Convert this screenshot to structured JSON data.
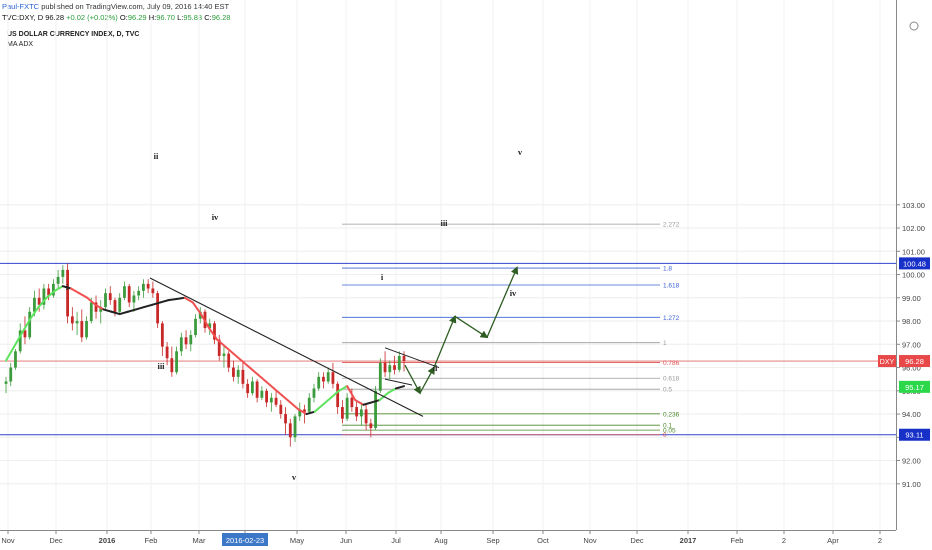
{
  "header": {
    "author": "Paul-FXTC",
    "published": "published on TradingView.com, July 09, 2016 14:40 EST",
    "symbol_line": "TVC:DXY, D",
    "last": "96.28",
    "change": "+0.02 (+0.02%)",
    "ohlc": [
      "O:",
      "96.29",
      "H:",
      "96.70",
      "L:",
      "95.83",
      "C:",
      "96.28"
    ]
  },
  "study": {
    "title": "US DOLLAR CURRENCY INDEX, D, TVC",
    "indicator": "MA ADX"
  },
  "colors": {
    "bull": "#3c9b3c",
    "bear": "#c82828",
    "ma_up": "#5de35d",
    "ma_down": "#f05050",
    "ma_flat": "#222222",
    "fib_blue": "#3b60d8",
    "fib_red": "#e05050",
    "fib_green": "#4a8a2a",
    "fib_gray": "#9a9a9a",
    "arrow": "#2e5d22",
    "hline": "#3344cc"
  },
  "chart_data": {
    "type": "candlestick",
    "title": "US DOLLAR CURRENCY INDEX, D, TVC",
    "ylim": [
      90.5,
      103.5
    ],
    "yticks": [
      "91.00",
      "92.00",
      "93.00",
      "94.00",
      "95.00",
      "96.00",
      "97.00",
      "98.00",
      "99.00",
      "100.00",
      "101.00",
      "102.00",
      "103.00"
    ],
    "xticks": [
      "Nov",
      "Dec",
      "2016",
      "Feb",
      "Mar",
      "2016-02-23",
      "May",
      "Jun",
      "Jul",
      "Aug",
      "Sep",
      "Oct",
      "Nov",
      "Dec",
      "2017",
      "Feb",
      "2",
      "Apr",
      "2"
    ],
    "price_badges": [
      {
        "label": "100.48",
        "value": 100.48,
        "style": "blue"
      },
      {
        "label": "96.28",
        "value": 96.28,
        "style": "red",
        "tag": "DXY"
      },
      {
        "label": "95.17",
        "value": 95.17,
        "style": "green"
      },
      {
        "label": "93.11",
        "value": 93.11,
        "style": "blue"
      }
    ],
    "horizontal_lines": [
      100.48,
      93.11
    ],
    "fib_levels": [
      {
        "label": "2.272",
        "value": 102.17,
        "color": "gray"
      },
      {
        "label": "1.8",
        "value": 100.28,
        "color": "blue"
      },
      {
        "label": "1.618",
        "value": 99.55,
        "color": "blue"
      },
      {
        "label": "1.272",
        "value": 98.16,
        "color": "blue"
      },
      {
        "label": "1",
        "value": 97.07,
        "color": "gray"
      },
      {
        "label": "0.786",
        "value": 96.22,
        "color": "red"
      },
      {
        "label": "0.618",
        "value": 95.54,
        "color": "gray"
      },
      {
        "label": "0.5",
        "value": 95.07,
        "color": "gray"
      },
      {
        "label": "0.236",
        "value": 94.01,
        "color": "green"
      },
      {
        "label": "0.1",
        "value": 93.52,
        "color": "green"
      },
      {
        "label": "0.05",
        "value": 93.31,
        "color": "green"
      },
      {
        "label": "0",
        "value": 93.11,
        "color": "red"
      }
    ],
    "wave_labels": [
      "ii",
      "i",
      "iv",
      "iii",
      "v",
      "i",
      "ii",
      "iii",
      "iv",
      "v"
    ],
    "candles_ohlc": [
      [
        95.3,
        95.6,
        94.9,
        95.4
      ],
      [
        95.4,
        96.2,
        95.2,
        96.0
      ],
      [
        96.0,
        96.8,
        95.9,
        96.7
      ],
      [
        96.7,
        97.9,
        96.6,
        97.6
      ],
      [
        97.6,
        98.2,
        97.0,
        97.3
      ],
      [
        97.3,
        98.6,
        97.2,
        98.4
      ],
      [
        98.4,
        99.3,
        98.2,
        99.0
      ],
      [
        99.0,
        99.4,
        98.4,
        98.7
      ],
      [
        98.7,
        99.6,
        98.5,
        99.4
      ],
      [
        99.4,
        99.6,
        98.9,
        99.1
      ],
      [
        99.1,
        99.8,
        99.0,
        99.6
      ],
      [
        99.6,
        100.2,
        99.4,
        99.9
      ],
      [
        99.9,
        100.4,
        99.6,
        100.2
      ],
      [
        100.2,
        100.48,
        97.9,
        98.2
      ],
      [
        98.2,
        98.6,
        97.6,
        97.9
      ],
      [
        97.9,
        98.4,
        97.4,
        98.0
      ],
      [
        98.0,
        98.5,
        97.1,
        97.3
      ],
      [
        97.3,
        98.2,
        97.2,
        98.0
      ],
      [
        98.0,
        99.0,
        97.9,
        98.8
      ],
      [
        98.8,
        99.1,
        98.1,
        98.4
      ],
      [
        98.4,
        98.9,
        97.9,
        98.6
      ],
      [
        98.6,
        99.4,
        98.5,
        99.2
      ],
      [
        99.2,
        99.5,
        98.7,
        98.9
      ],
      [
        98.9,
        99.0,
        98.2,
        98.4
      ],
      [
        98.4,
        99.2,
        98.3,
        99.0
      ],
      [
        99.0,
        99.7,
        98.9,
        99.5
      ],
      [
        99.5,
        99.6,
        98.6,
        98.8
      ],
      [
        98.8,
        99.3,
        98.4,
        99.1
      ],
      [
        99.1,
        99.5,
        98.9,
        99.3
      ],
      [
        99.3,
        99.8,
        99.0,
        99.6
      ],
      [
        99.6,
        99.8,
        99.2,
        99.4
      ],
      [
        99.4,
        99.7,
        99.0,
        99.2
      ],
      [
        99.2,
        99.3,
        97.7,
        97.9
      ],
      [
        97.9,
        98.0,
        96.5,
        96.9
      ],
      [
        96.9,
        97.1,
        96.1,
        96.4
      ],
      [
        96.4,
        96.9,
        95.6,
        95.8
      ],
      [
        95.8,
        96.9,
        95.7,
        96.7
      ],
      [
        96.7,
        97.5,
        96.5,
        97.3
      ],
      [
        97.3,
        97.6,
        96.8,
        97.0
      ],
      [
        97.0,
        97.6,
        96.7,
        97.4
      ],
      [
        97.4,
        98.3,
        97.3,
        98.1
      ],
      [
        98.1,
        98.6,
        97.9,
        98.4
      ],
      [
        98.4,
        98.5,
        97.5,
        97.7
      ],
      [
        97.7,
        98.1,
        97.4,
        97.9
      ],
      [
        97.9,
        98.0,
        97.0,
        97.2
      ],
      [
        97.2,
        97.4,
        96.3,
        96.5
      ],
      [
        96.5,
        96.9,
        96.0,
        96.6
      ],
      [
        96.6,
        96.7,
        95.8,
        96.0
      ],
      [
        96.0,
        96.3,
        95.4,
        95.6
      ],
      [
        95.6,
        96.1,
        95.3,
        95.9
      ],
      [
        95.9,
        96.2,
        95.1,
        95.3
      ],
      [
        95.3,
        95.5,
        94.7,
        94.9
      ],
      [
        94.9,
        95.6,
        94.8,
        95.4
      ],
      [
        95.4,
        95.5,
        94.5,
        94.7
      ],
      [
        94.7,
        95.2,
        94.6,
        95.0
      ],
      [
        95.0,
        95.1,
        94.3,
        94.5
      ],
      [
        94.5,
        94.9,
        94.1,
        94.7
      ],
      [
        94.7,
        95.0,
        94.3,
        94.4
      ],
      [
        94.4,
        94.6,
        93.8,
        94.0
      ],
      [
        94.0,
        94.3,
        93.1,
        93.6
      ],
      [
        93.6,
        93.8,
        92.6,
        93.0
      ],
      [
        93.0,
        94.0,
        92.8,
        93.9
      ],
      [
        93.9,
        94.5,
        93.7,
        94.2
      ],
      [
        94.2,
        94.4,
        93.6,
        94.1
      ],
      [
        94.1,
        94.9,
        94.0,
        94.7
      ],
      [
        94.7,
        95.3,
        94.5,
        95.1
      ],
      [
        95.1,
        95.8,
        95.0,
        95.6
      ],
      [
        95.6,
        95.8,
        95.1,
        95.4
      ],
      [
        95.4,
        96.0,
        95.3,
        95.8
      ],
      [
        95.8,
        96.2,
        95.1,
        95.3
      ],
      [
        95.3,
        95.4,
        94.0,
        94.3
      ],
      [
        94.3,
        94.6,
        93.6,
        93.8
      ],
      [
        93.8,
        94.9,
        93.7,
        94.7
      ],
      [
        94.7,
        95.1,
        94.1,
        94.3
      ],
      [
        94.3,
        94.6,
        93.7,
        93.9
      ],
      [
        93.9,
        94.5,
        93.5,
        94.2
      ],
      [
        94.2,
        94.4,
        93.3,
        93.6
      ],
      [
        93.6,
        93.8,
        93.0,
        93.4
      ],
      [
        93.4,
        95.2,
        93.3,
        95.0
      ],
      [
        95.0,
        96.4,
        94.9,
        96.2
      ],
      [
        96.2,
        96.7,
        95.6,
        95.8
      ],
      [
        95.8,
        96.3,
        95.5,
        96.1
      ],
      [
        96.1,
        96.5,
        95.7,
        95.9
      ],
      [
        95.9,
        96.7,
        95.8,
        96.5
      ],
      [
        96.5,
        96.7,
        95.83,
        96.28
      ]
    ],
    "ma_values": [
      96.3,
      96.9,
      97.5,
      98.1,
      98.6,
      99.0,
      99.3,
      99.5,
      99.4,
      99.2,
      99.0,
      98.7,
      98.5,
      98.4,
      98.3,
      98.4,
      98.5,
      98.6,
      98.7,
      98.8,
      98.9,
      98.95,
      99.0,
      98.8,
      98.3,
      97.7,
      97.2,
      96.9,
      96.6,
      96.3,
      96.0,
      95.7,
      95.4,
      95.1,
      94.8,
      94.5,
      94.2,
      94.0,
      94.1,
      94.4,
      94.7,
      95.0,
      95.2,
      94.6,
      94.4,
      94.5,
      94.6,
      94.9,
      95.1,
      95.2
    ],
    "wave_count_path": [
      [
        99.85,
        "start"
      ],
      [
        93.5,
        "breakout"
      ]
    ],
    "projected_path": [
      96.1,
      95.2,
      96.0,
      98.2,
      97.3,
      100.3
    ]
  }
}
